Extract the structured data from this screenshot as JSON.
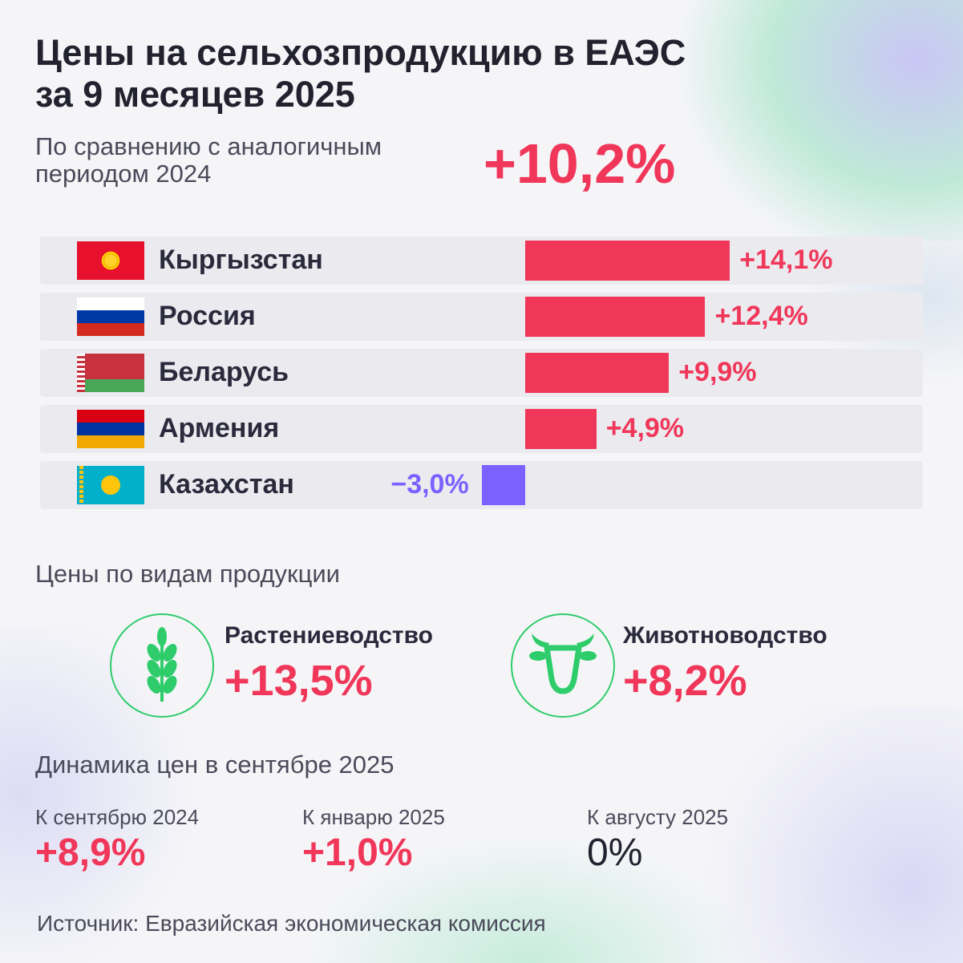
{
  "header": {
    "title": "Цены на сельхозпродукцию в ЕАЭС за 9 месяцев 2025",
    "comparison_label": "По сравнению с аналогичным периодом 2024",
    "total_change": "+10,2%"
  },
  "colors": {
    "positive": "#f0375a",
    "negative": "#7b61ff",
    "accent_green": "#2ecc6a"
  },
  "chart_data": {
    "type": "bar",
    "orientation": "horizontal",
    "categories": [
      "Кыргызстан",
      "Россия",
      "Беларусь",
      "Армения",
      "Казахстан"
    ],
    "values": [
      14.1,
      12.4,
      9.9,
      4.9,
      -3.0
    ],
    "labels": [
      "+14,1%",
      "+12,4%",
      "+9,9%",
      "+4,9%",
      "−3,0%"
    ],
    "flags": [
      "kyrgyzstan-flag",
      "russia-flag",
      "belarus-flag",
      "armenia-flag",
      "kazakhstan-flag"
    ],
    "unit": "%",
    "grid": false
  },
  "products": {
    "title": "Цены по видам продукции",
    "items": [
      {
        "label": "Растениеводство",
        "value": "+13,5%",
        "icon": "wheat-icon"
      },
      {
        "label": "Животноводство",
        "value": "+8,2%",
        "icon": "cow-icon"
      }
    ]
  },
  "september": {
    "title": "Динамика цен в сентябре 2025",
    "items": [
      {
        "label": "К сентябрю 2024",
        "value": "+8,9%"
      },
      {
        "label": "К январю 2025",
        "value": "+1,0%"
      },
      {
        "label": "К августу 2025",
        "value": "0%"
      }
    ]
  },
  "source": "Источник: Евразийская экономическая комиссия"
}
